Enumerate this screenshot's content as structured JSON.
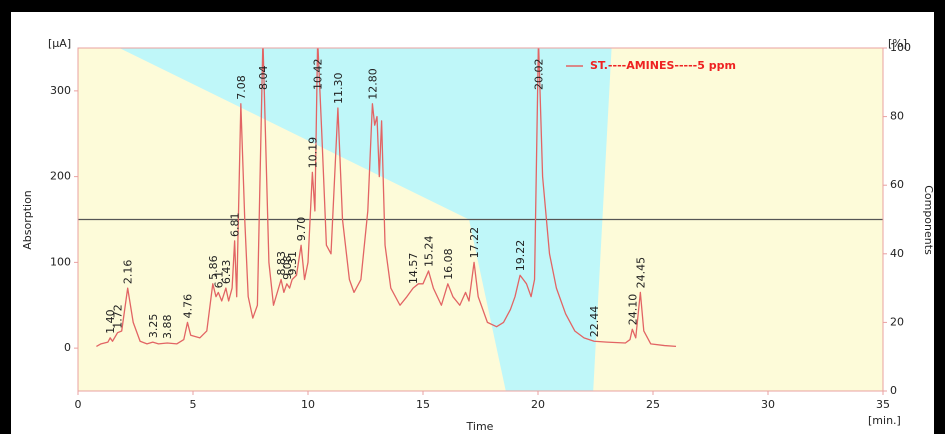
{
  "chart_data": {
    "type": "line",
    "xlabel": "Time",
    "xunit": "[min.]",
    "ylabel": "Absorption",
    "yunit": "[µA]",
    "y2label": "Components",
    "y2unit": "[%]",
    "xlim": [
      0,
      35
    ],
    "xticks": [
      0,
      5,
      10,
      15,
      20,
      25,
      30,
      35
    ],
    "ylim": [
      -50,
      350
    ],
    "yticks": [
      0,
      100,
      200,
      300
    ],
    "y2lim": [
      0,
      100
    ],
    "y2ticks": [
      0,
      20,
      40,
      60,
      80,
      100
    ],
    "hline": 150,
    "gradient": {
      "axis": "y2",
      "color": "#fdfbd9",
      "background": "#bff7f9",
      "x": [
        0,
        1.8,
        17,
        18.6,
        22.4,
        23.2,
        35
      ],
      "values": [
        100,
        100,
        50,
        0,
        0,
        100,
        100
      ]
    },
    "series": [
      {
        "name": "ST.----AMINES-----5 ppm",
        "color": "#e26464",
        "x": [
          0.8,
          1.0,
          1.3,
          1.4,
          1.5,
          1.72,
          1.9,
          2.16,
          2.4,
          2.7,
          3.0,
          3.25,
          3.5,
          3.88,
          4.3,
          4.6,
          4.76,
          4.9,
          5.3,
          5.6,
          5.86,
          6.0,
          6.1,
          6.25,
          6.43,
          6.55,
          6.7,
          6.81,
          6.9,
          7.08,
          7.25,
          7.4,
          7.6,
          7.8,
          8.04,
          8.3,
          8.5,
          8.83,
          8.95,
          9.08,
          9.2,
          9.31,
          9.5,
          9.7,
          9.85,
          10.0,
          10.19,
          10.3,
          10.42,
          10.6,
          10.8,
          11.0,
          11.3,
          11.5,
          11.8,
          12.0,
          12.3,
          12.6,
          12.8,
          12.9,
          13.0,
          13.1,
          13.2,
          13.35,
          13.6,
          14.0,
          14.3,
          14.57,
          14.8,
          15.0,
          15.24,
          15.45,
          15.8,
          16.08,
          16.3,
          16.6,
          16.85,
          17.0,
          17.22,
          17.4,
          17.8,
          18.2,
          18.5,
          18.8,
          19.0,
          19.22,
          19.5,
          19.7,
          19.85,
          20.02,
          20.2,
          20.5,
          20.8,
          21.2,
          21.6,
          22.0,
          22.44,
          23.0,
          23.8,
          24.0,
          24.1,
          24.25,
          24.45,
          24.6,
          24.9,
          25.5,
          26.0
        ],
        "values": [
          2,
          5,
          7,
          12,
          8,
          18,
          20,
          70,
          30,
          8,
          5,
          7,
          5,
          6,
          5,
          10,
          30,
          15,
          12,
          20,
          75,
          60,
          65,
          55,
          70,
          55,
          70,
          125,
          60,
          285,
          150,
          60,
          35,
          50,
          360,
          100,
          50,
          80,
          65,
          75,
          70,
          80,
          85,
          120,
          80,
          100,
          205,
          160,
          360,
          250,
          120,
          110,
          280,
          150,
          80,
          65,
          80,
          160,
          285,
          260,
          270,
          200,
          265,
          120,
          70,
          50,
          60,
          70,
          75,
          75,
          90,
          70,
          50,
          75,
          60,
          50,
          65,
          55,
          100,
          60,
          30,
          25,
          30,
          45,
          60,
          85,
          75,
          60,
          80,
          360,
          200,
          110,
          70,
          40,
          20,
          12,
          8,
          7,
          6,
          10,
          22,
          12,
          65,
          20,
          5,
          3,
          2
        ]
      }
    ],
    "peaks": [
      {
        "x": 1.4,
        "label": "1.40"
      },
      {
        "x": 1.72,
        "label": "1.72"
      },
      {
        "x": 2.16,
        "label": "2.16"
      },
      {
        "x": 3.25,
        "label": "3.25"
      },
      {
        "x": 3.88,
        "label": "3.88"
      },
      {
        "x": 4.76,
        "label": "4.76"
      },
      {
        "x": 5.86,
        "label": "5.86"
      },
      {
        "x": 6.1,
        "label": "6.1"
      },
      {
        "x": 6.43,
        "label": "6.43"
      },
      {
        "x": 6.81,
        "label": "6.81"
      },
      {
        "x": 7.08,
        "label": "7.08"
      },
      {
        "x": 8.04,
        "label": "8.04"
      },
      {
        "x": 8.83,
        "label": "8.83"
      },
      {
        "x": 9.08,
        "label": "9.08"
      },
      {
        "x": 9.31,
        "label": "9.31"
      },
      {
        "x": 9.7,
        "label": "9.70"
      },
      {
        "x": 10.19,
        "label": "10.19"
      },
      {
        "x": 10.42,
        "label": "10.42"
      },
      {
        "x": 11.3,
        "label": "11.30"
      },
      {
        "x": 12.8,
        "label": "12.80"
      },
      {
        "x": 14.57,
        "label": "14.57"
      },
      {
        "x": 15.24,
        "label": "15.24"
      },
      {
        "x": 16.08,
        "label": "16.08"
      },
      {
        "x": 17.22,
        "label": "17.22"
      },
      {
        "x": 19.22,
        "label": "19.22"
      },
      {
        "x": 20.02,
        "label": "20.02"
      },
      {
        "x": 22.44,
        "label": "22.44"
      },
      {
        "x": 24.1,
        "label": "24.10"
      },
      {
        "x": 24.45,
        "label": "24.45"
      }
    ]
  }
}
